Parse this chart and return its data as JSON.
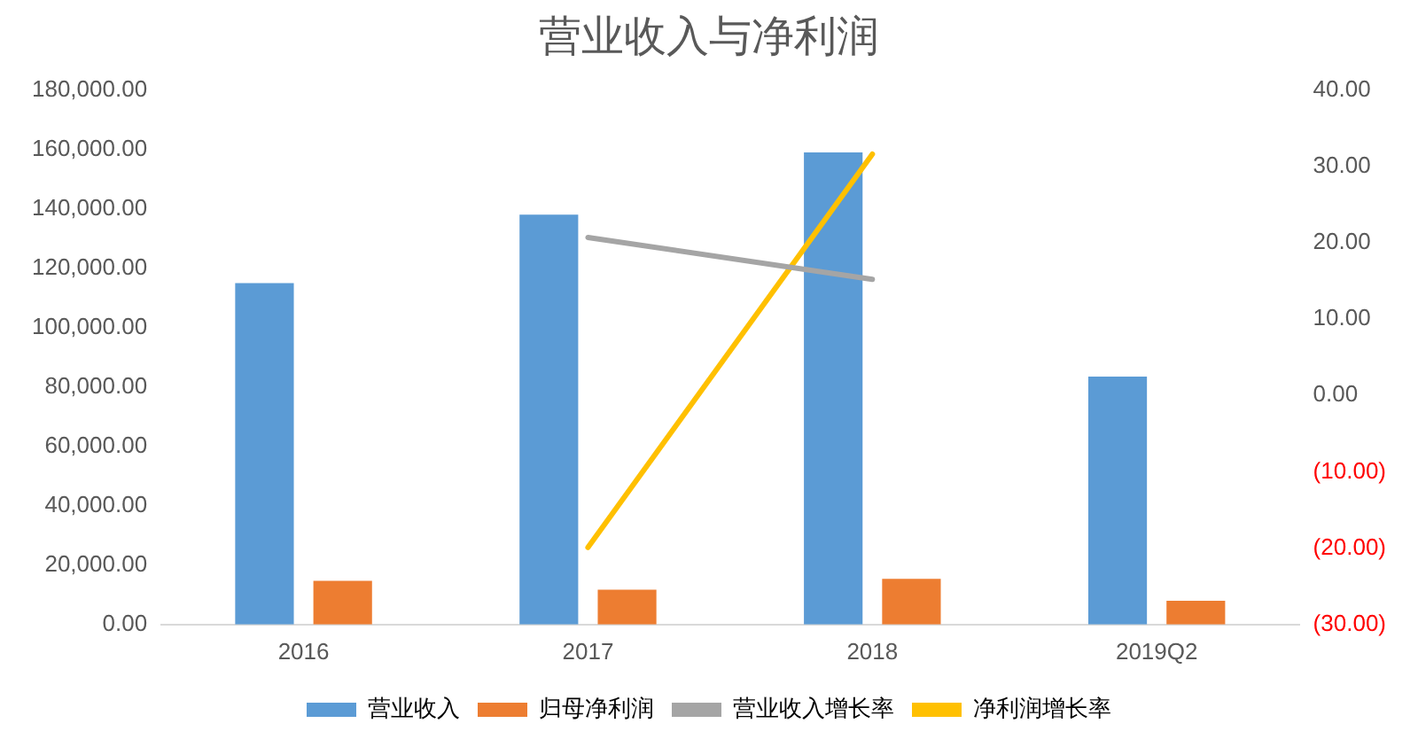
{
  "chart_data": {
    "type": "bar",
    "title": "营业收入与净利润",
    "categories": [
      "2016",
      "2017",
      "2018",
      "2019Q2"
    ],
    "series": [
      {
        "name": "营业收入",
        "color": "#5b9bd5",
        "values": [
          115000,
          138000,
          159000,
          83500
        ]
      },
      {
        "name": "归母净利润",
        "color": "#ed7d31",
        "values": [
          14700,
          11700,
          15400,
          8000
        ]
      },
      {
        "name": "营业收入增长率",
        "type": "line",
        "axis": "y2",
        "color": "#a5a5a5",
        "values": [
          null,
          20.7,
          15.2,
          null
        ]
      },
      {
        "name": "净利润增长率",
        "type": "line",
        "axis": "y2",
        "color": "#ffc000",
        "values": [
          null,
          -19.9,
          31.6,
          null
        ]
      }
    ],
    "ylim": [
      0,
      180000
    ],
    "yticks": [
      {
        "value": 0,
        "label": "0.00"
      },
      {
        "value": 20000,
        "label": "20,000.00"
      },
      {
        "value": 40000,
        "label": "40,000.00"
      },
      {
        "value": 60000,
        "label": "60,000.00"
      },
      {
        "value": 80000,
        "label": "80,000.00"
      },
      {
        "value": 100000,
        "label": "100,000.00"
      },
      {
        "value": 120000,
        "label": "120,000.00"
      },
      {
        "value": 140000,
        "label": "140,000.00"
      },
      {
        "value": 160000,
        "label": "160,000.00"
      },
      {
        "value": 180000,
        "label": "180,000.00"
      }
    ],
    "y2lim": [
      -30,
      40
    ],
    "y2ticks": [
      {
        "value": -30,
        "label": "(30.00)"
      },
      {
        "value": -20,
        "label": "(20.00)"
      },
      {
        "value": -10,
        "label": "(10.00)"
      },
      {
        "value": 0,
        "label": "0.00"
      },
      {
        "value": 10,
        "label": "10.00"
      },
      {
        "value": 20,
        "label": "20.00"
      },
      {
        "value": 30,
        "label": "30.00"
      },
      {
        "value": 40,
        "label": "40.00"
      }
    ],
    "grid": false,
    "legend": "bottom",
    "marker": "none",
    "line_style": "solid"
  }
}
